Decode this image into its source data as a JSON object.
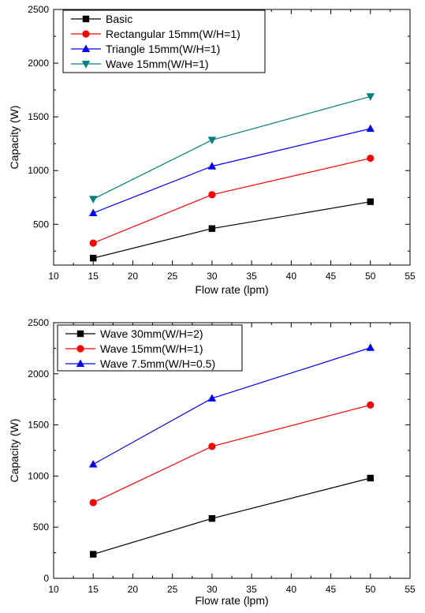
{
  "chart_data": [
    {
      "type": "line",
      "title": "",
      "xlabel": "Flow rate (lpm)",
      "ylabel": "Capacity (W)",
      "xlim": [
        10,
        55
      ],
      "ylim": [
        120,
        2500
      ],
      "xticks": [
        10,
        15,
        20,
        25,
        30,
        35,
        40,
        45,
        50,
        55
      ],
      "yticks": [
        500,
        1000,
        1500,
        2000,
        2500
      ],
      "grid": false,
      "legend_position": "top-left",
      "x": [
        15,
        30,
        50
      ],
      "series": [
        {
          "name": "Basic",
          "values": [
            185,
            460,
            710
          ],
          "color": "#000000",
          "marker": "square"
        },
        {
          "name": "Rectangular 15mm(W/H=1)",
          "values": [
            325,
            775,
            1115
          ],
          "color": "#ff0000",
          "marker": "circle"
        },
        {
          "name": "Triangle 15mm(W/H=1)",
          "values": [
            605,
            1040,
            1390
          ],
          "color": "#0000ff",
          "marker": "triangle-up"
        },
        {
          "name": "Wave 15mm(W/H=1)",
          "values": [
            735,
            1285,
            1690
          ],
          "color": "#008080",
          "marker": "triangle-down"
        }
      ]
    },
    {
      "type": "line",
      "title": "",
      "xlabel": "Flow rate (lpm)",
      "ylabel": "Capacity (W)",
      "xlim": [
        10,
        55
      ],
      "ylim": [
        0,
        2500
      ],
      "xticks": [
        10,
        15,
        20,
        25,
        30,
        35,
        40,
        45,
        50,
        55
      ],
      "yticks": [
        0,
        500,
        1000,
        1500,
        2000,
        2500
      ],
      "grid": false,
      "legend_position": "top-left",
      "x": [
        15,
        30,
        50
      ],
      "series": [
        {
          "name": "Wave 30mm(W/H=2)",
          "values": [
            235,
            585,
            980
          ],
          "color": "#000000",
          "marker": "square"
        },
        {
          "name": "Wave 15mm(W/H=1)",
          "values": [
            740,
            1290,
            1695
          ],
          "color": "#ff0000",
          "marker": "circle"
        },
        {
          "name": "Wave 7.5mm(W/H=0.5)",
          "values": [
            1115,
            1760,
            2255
          ],
          "color": "#0000ff",
          "marker": "triangle-up"
        }
      ]
    }
  ]
}
